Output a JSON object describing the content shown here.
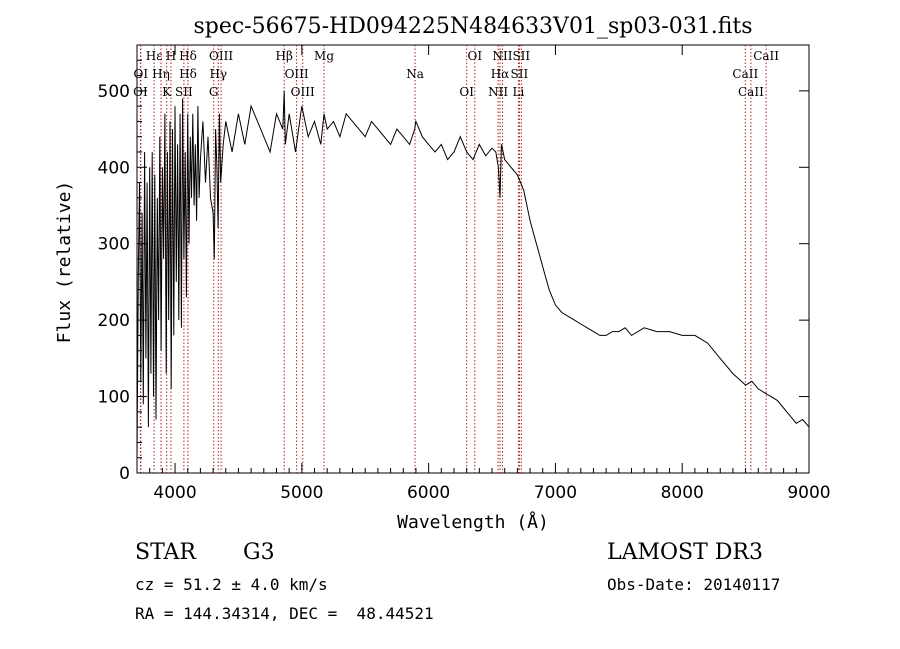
{
  "chart_data": {
    "type": "line",
    "title": "spec-56675-HD094225N484633V01_sp03-031.fits",
    "xlabel": "Wavelength (Å)",
    "ylabel": "Flux (relative)",
    "xlim": [
      3700,
      9000
    ],
    "ylim": [
      0,
      560
    ],
    "xticks": [
      4000,
      5000,
      6000,
      7000,
      8000,
      9000
    ],
    "yticks": [
      0,
      100,
      200,
      300,
      400,
      500
    ],
    "line_color": "#000000",
    "marker_color": "#b22222",
    "series": [
      {
        "name": "flux",
        "x": [
          3700,
          3710,
          3720,
          3730,
          3740,
          3750,
          3760,
          3770,
          3780,
          3790,
          3800,
          3810,
          3820,
          3830,
          3840,
          3850,
          3860,
          3870,
          3880,
          3890,
          3900,
          3910,
          3920,
          3930,
          3940,
          3950,
          3960,
          3970,
          3980,
          3990,
          4000,
          4010,
          4020,
          4030,
          4040,
          4050,
          4060,
          4070,
          4080,
          4090,
          4100,
          4110,
          4120,
          4130,
          4140,
          4150,
          4160,
          4170,
          4180,
          4190,
          4200,
          4220,
          4240,
          4260,
          4280,
          4300,
          4310,
          4320,
          4330,
          4340,
          4350,
          4360,
          4380,
          4400,
          4450,
          4500,
          4550,
          4600,
          4650,
          4700,
          4750,
          4800,
          4850,
          4861,
          4870,
          4900,
          4950,
          5000,
          5050,
          5100,
          5150,
          5175,
          5200,
          5250,
          5300,
          5350,
          5400,
          5450,
          5500,
          5550,
          5600,
          5650,
          5700,
          5750,
          5800,
          5850,
          5890,
          5900,
          5950,
          6000,
          6050,
          6100,
          6150,
          6200,
          6250,
          6300,
          6350,
          6400,
          6450,
          6500,
          6530,
          6550,
          6563,
          6575,
          6600,
          6650,
          6700,
          6750,
          6800,
          6850,
          6900,
          6950,
          7000,
          7050,
          7100,
          7150,
          7200,
          7250,
          7300,
          7350,
          7400,
          7450,
          7500,
          7550,
          7600,
          7700,
          7800,
          7900,
          8000,
          8100,
          8200,
          8300,
          8400,
          8500,
          8550,
          8600,
          8650,
          8700,
          8750,
          8800,
          8850,
          8900,
          8950,
          9000
        ],
        "values": [
          20,
          260,
          380,
          120,
          340,
          90,
          420,
          150,
          380,
          60,
          400,
          130,
          420,
          100,
          390,
          70,
          360,
          200,
          440,
          160,
          400,
          280,
          470,
          130,
          420,
          200,
          460,
          110,
          450,
          180,
          480,
          250,
          430,
          200,
          470,
          190,
          490,
          280,
          420,
          230,
          470,
          300,
          440,
          360,
          470,
          350,
          430,
          330,
          480,
          360,
          410,
          460,
          380,
          440,
          360,
          340,
          280,
          450,
          400,
          320,
          470,
          380,
          430,
          460,
          420,
          470,
          430,
          480,
          460,
          440,
          420,
          470,
          450,
          500,
          430,
          470,
          420,
          480,
          440,
          460,
          430,
          470,
          450,
          460,
          440,
          470,
          460,
          450,
          440,
          460,
          450,
          440,
          430,
          450,
          440,
          430,
          450,
          460,
          440,
          430,
          420,
          430,
          410,
          420,
          440,
          420,
          410,
          430,
          415,
          425,
          420,
          400,
          360,
          430,
          410,
          400,
          390,
          370,
          330,
          300,
          270,
          240,
          220,
          210,
          205,
          200,
          195,
          190,
          185,
          180,
          180,
          185,
          185,
          190,
          180,
          190,
          185,
          185,
          180,
          180,
          170,
          150,
          130,
          115,
          120,
          110,
          105,
          100,
          95,
          85,
          75,
          65,
          70,
          60
        ]
      }
    ],
    "line_markers": [
      {
        "label": "Hδ",
        "wavelength": 4102
      },
      {
        "label": "OI",
        "wavelength": 3730
      },
      {
        "label": "OI",
        "wavelength": 3727
      },
      {
        "label": "Hε",
        "wavelength": 3835
      },
      {
        "label": "Hη",
        "wavelength": 3889
      },
      {
        "label": "K",
        "wavelength": 3934
      },
      {
        "label": "H",
        "wavelength": 3968
      },
      {
        "label": "Hδ",
        "wavelength": 4102
      },
      {
        "label": "SII",
        "wavelength": 4070
      },
      {
        "label": "OIII",
        "wavelength": 4363
      },
      {
        "label": "Hγ",
        "wavelength": 4341
      },
      {
        "label": "G",
        "wavelength": 4305
      },
      {
        "label": "Hβ",
        "wavelength": 4861
      },
      {
        "label": "OIII",
        "wavelength": 4959
      },
      {
        "label": "OIII",
        "wavelength": 5007
      },
      {
        "label": "Mg",
        "wavelength": 5175
      },
      {
        "label": "Na",
        "wavelength": 5893
      },
      {
        "label": "OI",
        "wavelength": 6300
      },
      {
        "label": "OI",
        "wavelength": 6364
      },
      {
        "label": "Hα",
        "wavelength": 6563
      },
      {
        "label": "NII",
        "wavelength": 6548
      },
      {
        "label": "NII",
        "wavelength": 6583
      },
      {
        "label": "SII",
        "wavelength": 6716
      },
      {
        "label": "Li",
        "wavelength": 6708
      },
      {
        "label": "SII",
        "wavelength": 6731
      },
      {
        "label": "CaII",
        "wavelength": 8498
      },
      {
        "label": "CaII",
        "wavelength": 8542
      },
      {
        "label": "CaII",
        "wavelength": 8662
      }
    ]
  },
  "info": {
    "class_label": "STAR",
    "subclass": "G3",
    "survey": "LAMOST DR3",
    "cz_text": "cz = 51.2 ± 4.0 km/s",
    "obs_date_text": "Obs-Date: 20140117",
    "radec_text": "RA = 144.34314, DEC =  48.44521"
  }
}
